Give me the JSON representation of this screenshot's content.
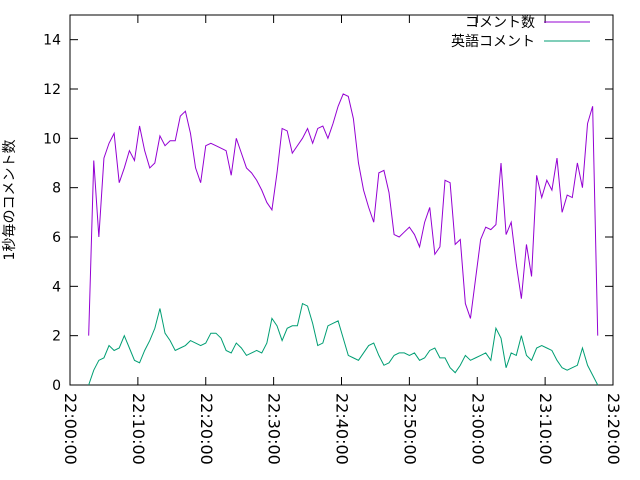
{
  "chart_data": {
    "type": "line",
    "ylabel": "1秒毎のコメント数",
    "x": [
      "22:02:45",
      "22:03:30",
      "22:04:15",
      "22:05:00",
      "22:05:45",
      "22:06:30",
      "22:07:15",
      "22:08:00",
      "22:08:45",
      "22:09:30",
      "22:10:15",
      "22:11:00",
      "22:11:45",
      "22:12:30",
      "22:13:15",
      "22:14:00",
      "22:14:45",
      "22:15:30",
      "22:16:15",
      "22:17:00",
      "22:17:45",
      "22:18:30",
      "22:19:15",
      "22:20:00",
      "22:20:45",
      "22:21:30",
      "22:22:15",
      "22:23:00",
      "22:23:45",
      "22:24:30",
      "22:25:15",
      "22:26:00",
      "22:26:45",
      "22:27:30",
      "22:28:15",
      "22:29:00",
      "22:29:45",
      "22:30:30",
      "22:31:15",
      "22:32:00",
      "22:32:45",
      "22:33:30",
      "22:34:15",
      "22:35:00",
      "22:35:45",
      "22:36:30",
      "22:37:15",
      "22:38:00",
      "22:38:45",
      "22:39:30",
      "22:40:15",
      "22:41:00",
      "22:41:45",
      "22:42:30",
      "22:43:15",
      "22:44:00",
      "22:44:45",
      "22:45:30",
      "22:46:15",
      "22:47:00",
      "22:47:45",
      "22:48:30",
      "22:49:15",
      "22:50:00",
      "22:50:45",
      "22:51:30",
      "22:52:15",
      "22:53:00",
      "22:53:45",
      "22:54:30",
      "22:55:15",
      "22:56:00",
      "22:56:45",
      "22:57:30",
      "22:58:15",
      "22:59:00",
      "22:59:45",
      "23:00:30",
      "23:01:15",
      "23:02:00",
      "23:02:45",
      "23:03:30",
      "23:04:15",
      "23:05:00",
      "23:05:45",
      "23:06:30",
      "23:07:15",
      "23:08:00",
      "23:08:45",
      "23:09:30",
      "23:10:15",
      "23:11:00",
      "23:11:45",
      "23:12:30",
      "23:13:15",
      "23:14:00",
      "23:14:45",
      "23:15:30",
      "23:16:15",
      "23:17:00",
      "23:17:45"
    ],
    "series": [
      {
        "name": "コメント数",
        "color": "#9400d3",
        "values": [
          2.0,
          9.1,
          6.0,
          9.2,
          9.8,
          10.2,
          8.2,
          8.8,
          9.5,
          9.1,
          10.5,
          9.5,
          8.8,
          9.0,
          10.1,
          9.7,
          9.9,
          9.9,
          10.9,
          11.1,
          10.2,
          8.8,
          8.2,
          9.7,
          9.8,
          9.7,
          9.6,
          9.5,
          8.5,
          10.0,
          9.4,
          8.8,
          8.6,
          8.3,
          7.9,
          7.4,
          7.1,
          8.6,
          10.4,
          10.3,
          9.4,
          9.7,
          10.0,
          10.4,
          9.8,
          10.4,
          10.5,
          10.0,
          10.6,
          11.3,
          11.8,
          11.7,
          10.8,
          9.0,
          7.9,
          7.2,
          6.6,
          8.6,
          8.7,
          7.8,
          6.1,
          6.0,
          6.2,
          6.4,
          6.1,
          5.6,
          6.6,
          7.2,
          5.3,
          5.6,
          8.3,
          8.2,
          5.7,
          5.9,
          3.3,
          2.7,
          4.3,
          5.9,
          6.4,
          6.3,
          6.5,
          9.0,
          6.1,
          6.6,
          4.9,
          3.5,
          5.7,
          4.4,
          8.5,
          7.6,
          8.3,
          7.9,
          9.2,
          7.0,
          7.7,
          7.6,
          9.0,
          8.0,
          10.6,
          11.3,
          2.0
        ]
      },
      {
        "name": "英語コメント",
        "color": "#009e73",
        "values": [
          0.0,
          0.6,
          1.0,
          1.1,
          1.6,
          1.4,
          1.5,
          2.0,
          1.5,
          1.0,
          0.9,
          1.4,
          1.8,
          2.3,
          3.1,
          2.1,
          1.8,
          1.4,
          1.5,
          1.6,
          1.8,
          1.7,
          1.6,
          1.7,
          2.1,
          2.1,
          1.9,
          1.4,
          1.3,
          1.7,
          1.5,
          1.2,
          1.3,
          1.4,
          1.3,
          1.7,
          2.7,
          2.4,
          1.8,
          2.3,
          2.4,
          2.4,
          3.3,
          3.2,
          2.5,
          1.6,
          1.7,
          2.4,
          2.5,
          2.6,
          1.9,
          1.2,
          1.1,
          1.0,
          1.3,
          1.6,
          1.7,
          1.2,
          0.8,
          0.9,
          1.2,
          1.3,
          1.3,
          1.2,
          1.3,
          1.0,
          1.1,
          1.4,
          1.5,
          1.1,
          1.1,
          0.7,
          0.5,
          0.8,
          1.2,
          1.0,
          1.1,
          1.2,
          1.3,
          1.0,
          2.3,
          1.9,
          0.7,
          1.3,
          1.2,
          2.0,
          1.2,
          1.0,
          1.5,
          1.6,
          1.5,
          1.4,
          1.0,
          0.7,
          0.6,
          0.7,
          0.8,
          1.5,
          0.8,
          0.4,
          0.0
        ]
      }
    ],
    "xlim": [
      "22:00:00",
      "23:20:00"
    ],
    "xticks": [
      "22:00:00",
      "22:10:00",
      "22:20:00",
      "22:30:00",
      "22:40:00",
      "22:50:00",
      "23:00:00",
      "23:10:00",
      "23:20:00"
    ],
    "ylim": [
      0,
      15
    ],
    "yticks": [
      0,
      2,
      4,
      6,
      8,
      10,
      12,
      14
    ],
    "legend": "top-right"
  }
}
